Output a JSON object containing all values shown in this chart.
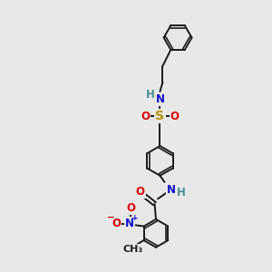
{
  "bg_color": "#e8e8e8",
  "bond_color": "#1a1a1a",
  "bond_lw": 1.4,
  "atom_colors": {
    "C": "#1a1a1a",
    "H": "#4a9090",
    "N": "#1010d0",
    "O": "#dd0000",
    "S": "#b89000",
    "Nplus": "#1010d0",
    "Ominus": "#dd0000"
  },
  "fs": 8.5,
  "fs_small": 7.5
}
